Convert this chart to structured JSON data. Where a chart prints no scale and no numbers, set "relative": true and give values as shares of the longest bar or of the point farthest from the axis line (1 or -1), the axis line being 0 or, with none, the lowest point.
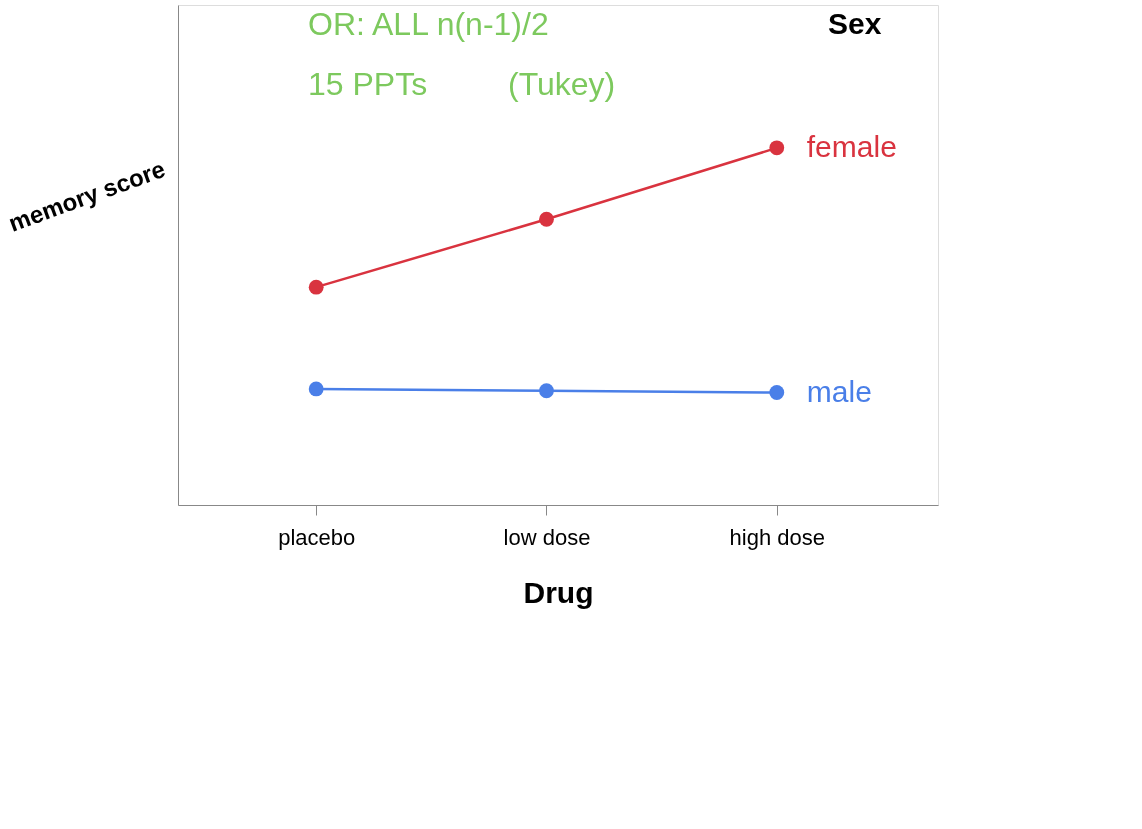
{
  "chart_data": {
    "type": "line",
    "relative": true,
    "xlabel": "Drug",
    "ylabel": "memory score",
    "legend_title": "Sex",
    "legend": false,
    "marker": "circle",
    "line_style": "solid",
    "grid": false,
    "categories": [
      "placebo",
      "low dose",
      "high dose"
    ],
    "series": [
      {
        "name": "female",
        "color": "#d9333f",
        "values": [
          0.61,
          0.8,
          1
        ]
      },
      {
        "name": "male",
        "color": "#4a7fe8",
        "values": [
          0.325,
          0.32,
          0.315
        ]
      }
    ],
    "annotations": [
      "OR: ALL n(n-1)/2",
      "15 PPTs",
      "(Tukey)"
    ]
  }
}
